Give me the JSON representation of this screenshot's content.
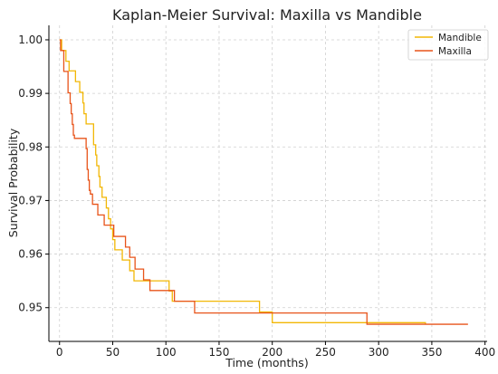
{
  "chart_data": {
    "type": "line",
    "title": "Kaplan-Meier Survival: Maxilla vs Mandible",
    "xlabel": "Time (months)",
    "ylabel": "Survival Probability",
    "xlim": [
      -10,
      402
    ],
    "ylim": [
      0.9437,
      1.0027
    ],
    "xticks": [
      0,
      50,
      100,
      150,
      200,
      250,
      300,
      350,
      400
    ],
    "yticks": [
      0.95,
      0.96,
      0.97,
      0.98,
      0.99,
      1.0
    ],
    "xtick_labels": [
      "0",
      "50",
      "100",
      "150",
      "200",
      "250",
      "300",
      "350",
      "400"
    ],
    "ytick_labels": [
      "0.95",
      "0.96",
      "0.97",
      "0.98",
      "0.99",
      "1.00"
    ],
    "grid": true,
    "legend_position": "top-right",
    "step": true,
    "series": [
      {
        "name": "Mandible",
        "color": "#F2B705",
        "points": [
          [
            0,
            1.0
          ],
          [
            2,
            0.998
          ],
          [
            6,
            0.996
          ],
          [
            9,
            0.9942
          ],
          [
            15,
            0.9922
          ],
          [
            19,
            0.9902
          ],
          [
            22,
            0.9882
          ],
          [
            23,
            0.9862
          ],
          [
            25,
            0.9843
          ],
          [
            32,
            0.9804
          ],
          [
            34,
            0.9785
          ],
          [
            35,
            0.9765
          ],
          [
            37,
            0.9745
          ],
          [
            38,
            0.9725
          ],
          [
            40,
            0.9706
          ],
          [
            44,
            0.9686
          ],
          [
            46,
            0.9666
          ],
          [
            48,
            0.9647
          ],
          [
            50,
            0.9627
          ],
          [
            52,
            0.9608
          ],
          [
            59,
            0.9589
          ],
          [
            66,
            0.9569
          ],
          [
            70,
            0.955
          ],
          [
            103,
            0.9531
          ],
          [
            106,
            0.9512
          ],
          [
            188,
            0.9492
          ],
          [
            200,
            0.9472
          ],
          [
            289,
            0.9472
          ],
          [
            344,
            0.9469
          ]
        ]
      },
      {
        "name": "Maxilla",
        "color": "#E8541A",
        "points": [
          [
            0,
            1.0
          ],
          [
            1,
            0.998
          ],
          [
            4,
            0.9941
          ],
          [
            8,
            0.9901
          ],
          [
            10,
            0.9881
          ],
          [
            11,
            0.9862
          ],
          [
            12,
            0.9842
          ],
          [
            13,
            0.9822
          ],
          [
            14,
            0.9816
          ],
          [
            25,
            0.9797
          ],
          [
            26,
            0.9758
          ],
          [
            27,
            0.9738
          ],
          [
            28,
            0.9719
          ],
          [
            29,
            0.9712
          ],
          [
            31,
            0.9693
          ],
          [
            36,
            0.9673
          ],
          [
            42,
            0.9654
          ],
          [
            51,
            0.9633
          ],
          [
            62,
            0.9613
          ],
          [
            66,
            0.9594
          ],
          [
            71,
            0.9572
          ],
          [
            79,
            0.9552
          ],
          [
            85,
            0.9532
          ],
          [
            102,
            0.9532
          ],
          [
            108,
            0.9512
          ],
          [
            127,
            0.949
          ],
          [
            289,
            0.9469
          ],
          [
            384,
            0.9469
          ]
        ]
      }
    ]
  }
}
